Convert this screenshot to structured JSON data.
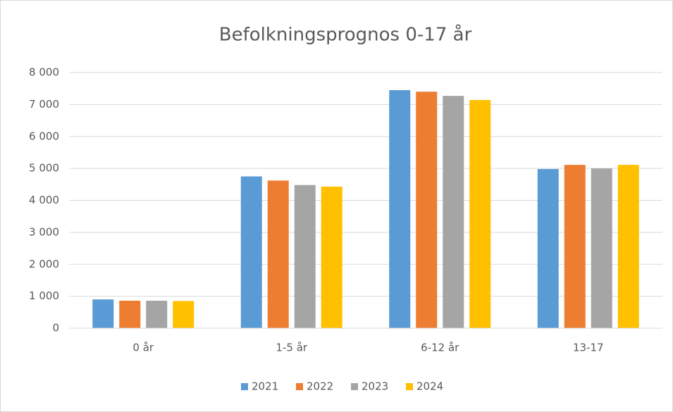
{
  "chart_data": {
    "type": "bar",
    "title": "Befolkningsprognos 0-17 år",
    "categories": [
      "0 år",
      "1-5 år",
      "6-12 år",
      "13-17"
    ],
    "series": [
      {
        "name": "2021",
        "color": "#5b9bd5",
        "values": [
          900,
          4750,
          7450,
          4980
        ]
      },
      {
        "name": "2022",
        "color": "#ed7d31",
        "values": [
          860,
          4620,
          7400,
          5110
        ]
      },
      {
        "name": "2023",
        "color": "#a5a5a5",
        "values": [
          860,
          4480,
          7270,
          5000
        ]
      },
      {
        "name": "2024",
        "color": "#ffc000",
        "values": [
          850,
          4430,
          7140,
          5110
        ]
      }
    ],
    "ylim": [
      0,
      8000
    ],
    "yticks": [
      0,
      {
        "value": 1000,
        "label": "1 000"
      },
      {
        "value": 2000,
        "label": "2 000"
      },
      {
        "value": 3000,
        "label": "3 000"
      },
      {
        "value": 4000,
        "label": "4 000"
      },
      {
        "value": 5000,
        "label": "5 000"
      },
      {
        "value": 6000,
        "label": "6 000"
      },
      {
        "value": 7000,
        "label": "7 000"
      },
      {
        "value": 8000,
        "label": "8 000"
      }
    ],
    "grid": true,
    "legend": "bottom"
  }
}
